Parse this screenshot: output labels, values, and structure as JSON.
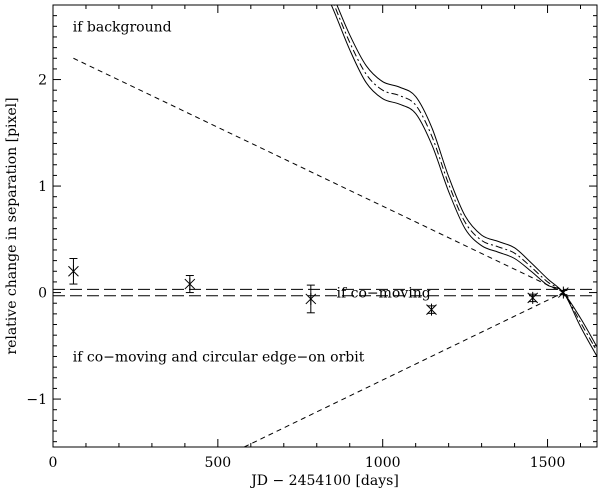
{
  "chart_data": {
    "type": "scatter",
    "title": "",
    "xlabel": "JD − 2454100 [days]",
    "ylabel": "relative change in separation [pixel]",
    "xlim": [
      0,
      1650
    ],
    "ylim": [
      -1.45,
      2.7
    ],
    "x_ticks": [
      0,
      500,
      1000,
      1500
    ],
    "y_ticks": [
      -1,
      0,
      1,
      2
    ],
    "x_tick_labels": [
      "0",
      "500",
      "1000",
      "1500"
    ],
    "y_tick_labels": [
      "−1",
      "0",
      "1",
      "2"
    ],
    "grid": false,
    "annotations": [
      {
        "text": "if background",
        "x": 60,
        "y": 2.5
      },
      {
        "text": "if co−moving",
        "x": 860,
        "y": 0.0
      },
      {
        "text": "if co−moving and circular edge−on orbit",
        "x": 60,
        "y": -0.6
      }
    ],
    "measurements": {
      "x": [
        62,
        415,
        782,
        1148,
        1455,
        1548
      ],
      "y": [
        0.2,
        0.08,
        -0.06,
        -0.16,
        -0.05,
        0.0
      ],
      "yerr": [
        0.12,
        0.08,
        0.13,
        0.035,
        0.035,
        0.02
      ]
    },
    "co_moving_band": {
      "upper": 0.03,
      "lower": -0.03
    },
    "background_track": {
      "x": [
        800,
        850,
        900,
        950,
        1000,
        1050,
        1100,
        1150,
        1200,
        1250,
        1300,
        1350,
        1400,
        1450,
        1500,
        1548,
        1600,
        1650
      ],
      "y": [
        3.05,
        2.72,
        2.35,
        2.05,
        1.9,
        1.85,
        1.76,
        1.46,
        1.02,
        0.66,
        0.49,
        0.43,
        0.37,
        0.24,
        0.1,
        0.0,
        -0.28,
        -0.55
      ],
      "upper_envelope": [
        3.1,
        2.78,
        2.42,
        2.13,
        1.98,
        1.93,
        1.84,
        1.54,
        1.09,
        0.72,
        0.54,
        0.48,
        0.42,
        0.28,
        0.13,
        0.0,
        -0.24,
        -0.51
      ],
      "lower_envelope": [
        3.0,
        2.66,
        2.28,
        1.97,
        1.82,
        1.77,
        1.68,
        1.38,
        0.95,
        0.6,
        0.44,
        0.38,
        0.32,
        0.2,
        0.07,
        0.0,
        -0.32,
        -0.6
      ]
    },
    "linear_background_trend": {
      "x": [
        62,
        1548
      ],
      "y": [
        2.2,
        0.0
      ]
    },
    "orbit_trend": {
      "x": [
        580,
        1548
      ],
      "y": [
        -1.45,
        0.0
      ]
    }
  }
}
